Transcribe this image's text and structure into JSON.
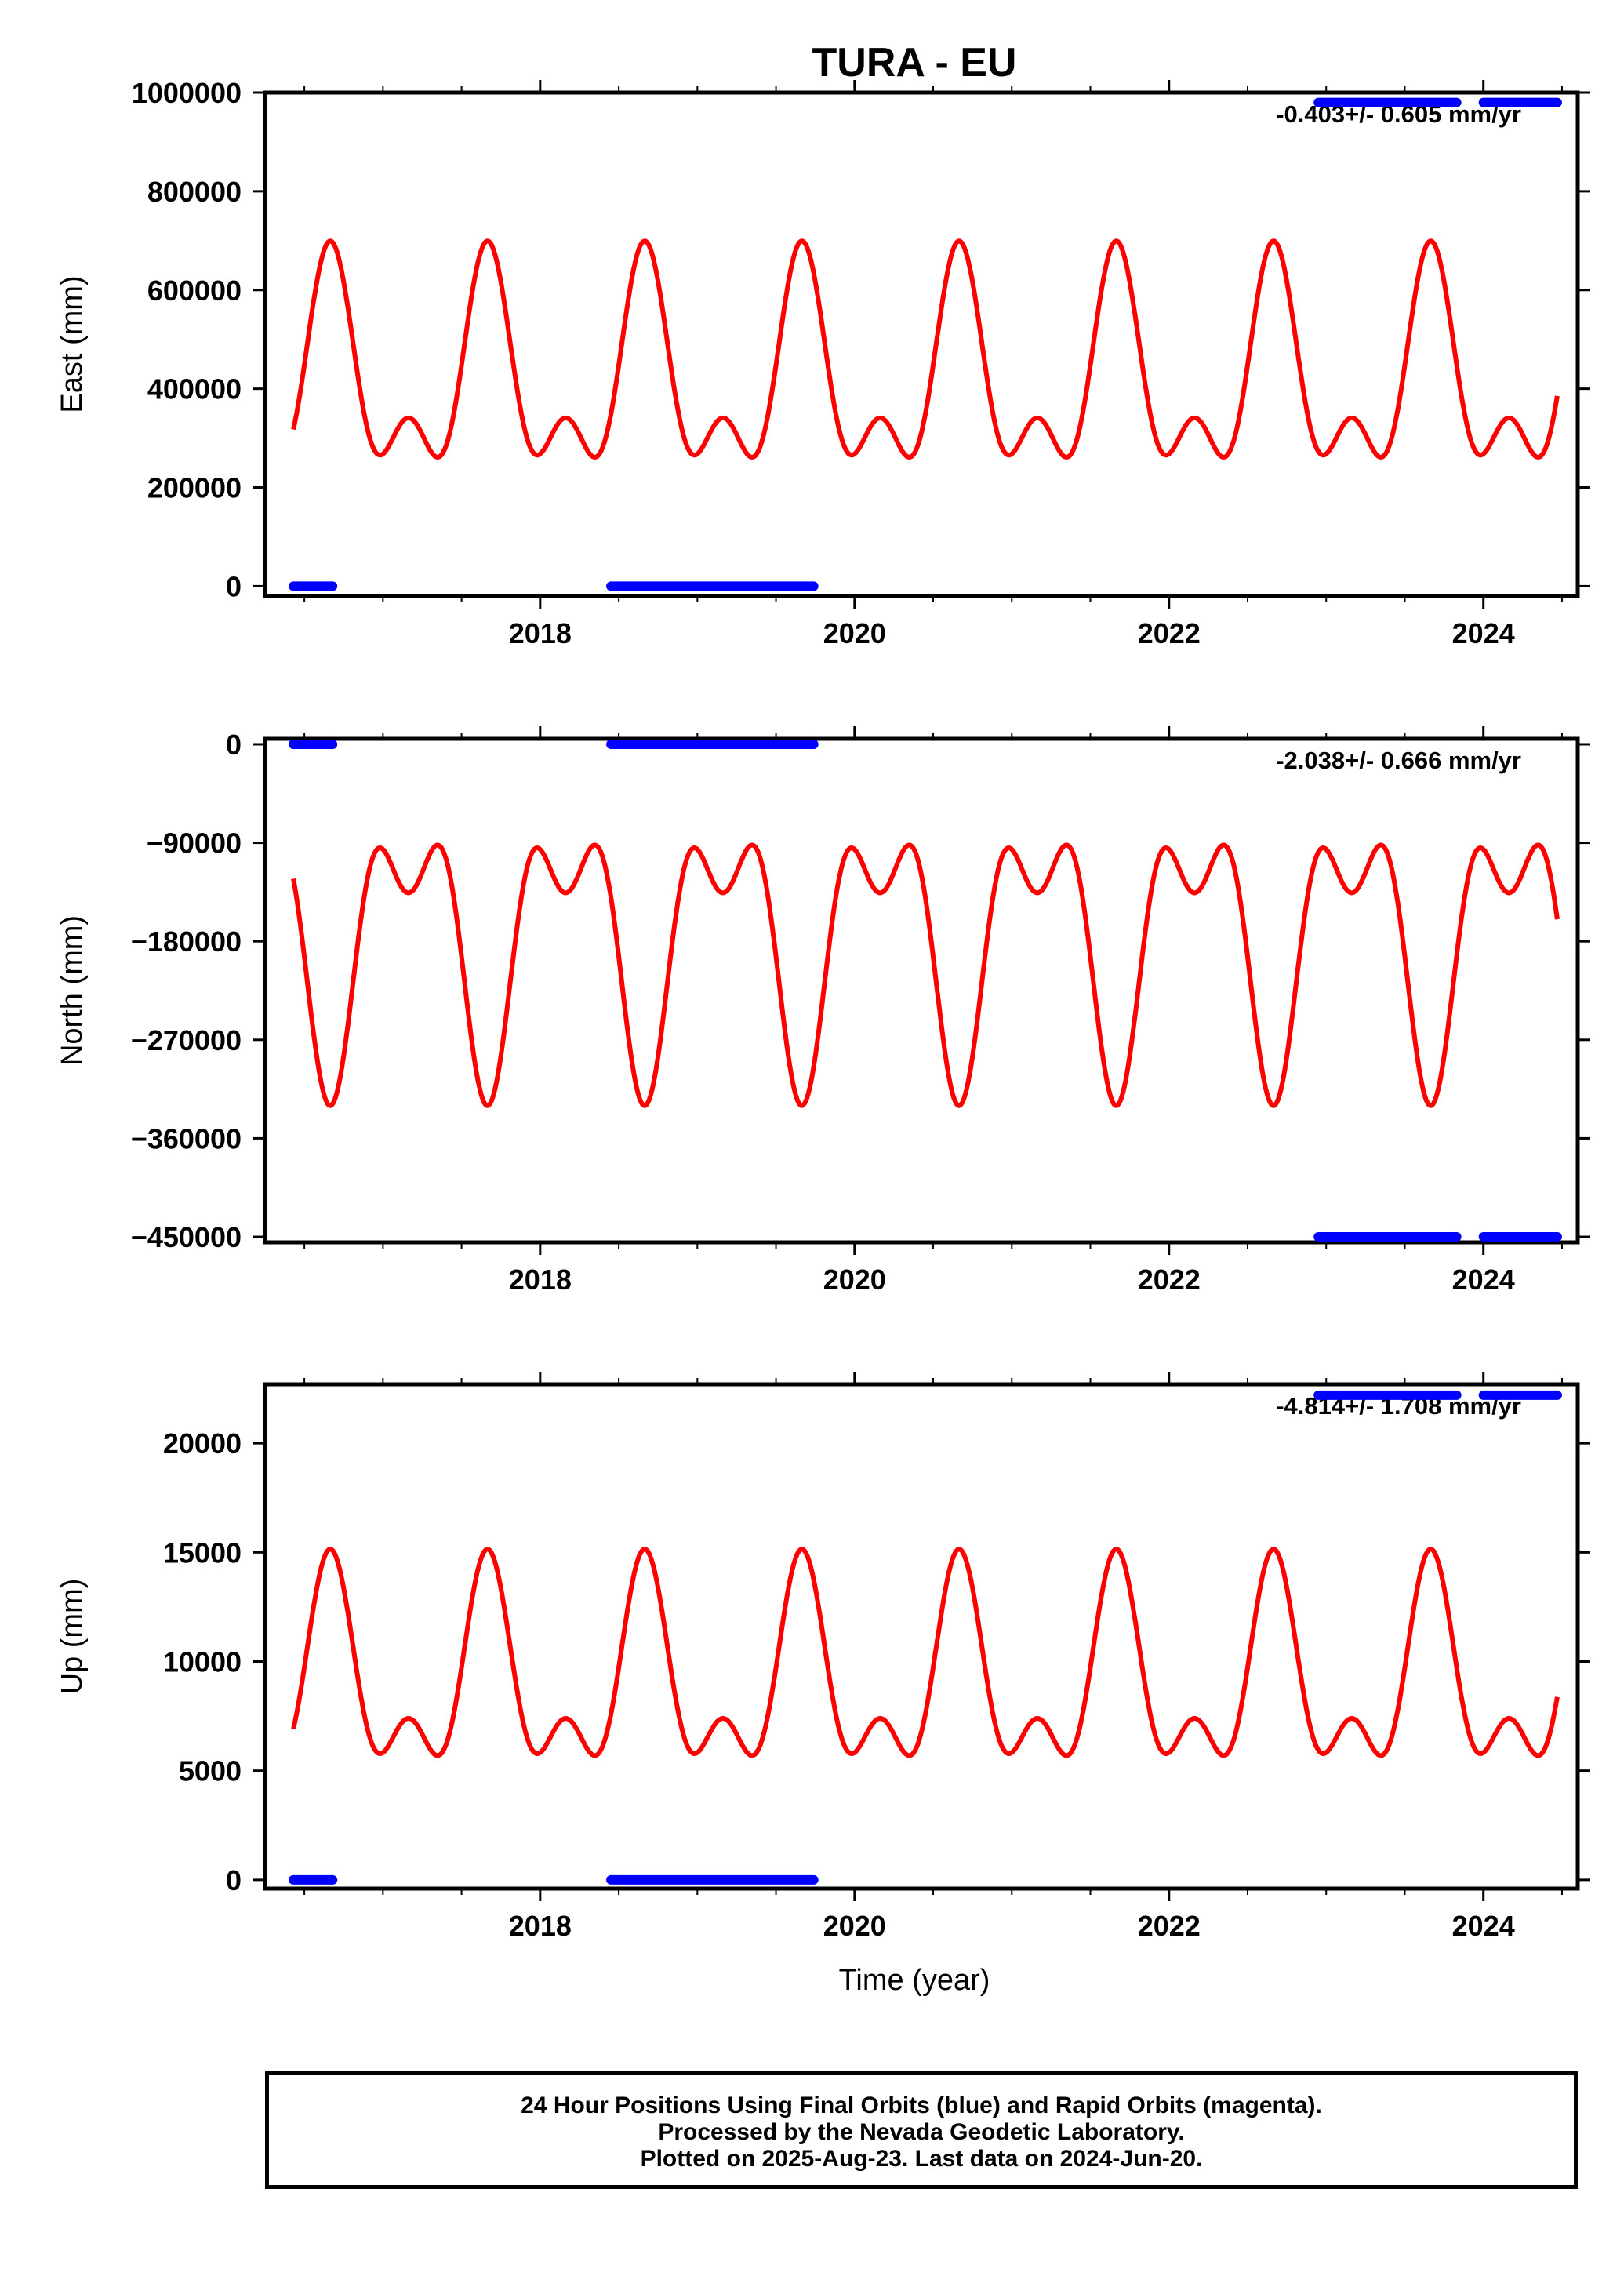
{
  "colors": {
    "model": "#ff0000",
    "final_orbits": "#0000ff",
    "frame": "#000000"
  },
  "chart_data": {
    "title": "TURA - EU",
    "xlabel": "Time (year)",
    "xlim": [
      2016.25,
      2024.6
    ],
    "x_ticks": [
      "2018",
      "2020",
      "2022",
      "2024"
    ],
    "panels": [
      {
        "type": "line",
        "ylabel": "East (mm)",
        "ylim": [
          -20000,
          1000000
        ],
        "y_ticks": [
          "0",
          "200000",
          "400000",
          "600000",
          "800000",
          "1000000"
        ],
        "y_tick_values": [
          0,
          200000,
          400000,
          600000,
          800000,
          1000000
        ],
        "rate": "-0.403+/- 0.605 mm/yr",
        "model": {
          "mean": 410000,
          "c1": -90000,
          "s1": -155000,
          "c2": -52000,
          "s2": 97000,
          "x_start": 2016.43,
          "x_end": 2024.47
        },
        "final_orbit_segments": [
          {
            "x": [
              2016.43,
              2016.68
            ],
            "y": 0
          },
          {
            "x": [
              2018.45,
              2019.74
            ],
            "y": 0
          },
          {
            "x": [
              2022.95,
              2023.83
            ],
            "y": 980000
          },
          {
            "x": [
              2024.0,
              2024.47
            ],
            "y": 980000
          }
        ]
      },
      {
        "type": "line",
        "ylabel": "North (mm)",
        "ylim": [
          -455000,
          5000
        ],
        "y_ticks": [
          "0",
          "−90000",
          "−180000",
          "−270000",
          "−360000",
          "−450000"
        ],
        "y_tick_values": [
          0,
          -90000,
          -180000,
          -270000,
          -360000,
          -450000
        ],
        "rate": "-2.038+/- 0.666 mm/yr",
        "model": {
          "mean": -173000,
          "c1": 49000,
          "s1": 84000,
          "c2": 28000,
          "s2": -53000,
          "x_start": 2016.43,
          "x_end": 2024.47
        },
        "final_orbit_segments": [
          {
            "x": [
              2016.43,
              2016.68
            ],
            "y": 0
          },
          {
            "x": [
              2018.45,
              2019.74
            ],
            "y": 0
          },
          {
            "x": [
              2022.95,
              2023.83
            ],
            "y": -450000
          },
          {
            "x": [
              2024.0,
              2024.47
            ],
            "y": -450000
          }
        ]
      },
      {
        "type": "line",
        "ylabel": "Up (mm)",
        "ylim": [
          -400,
          22700
        ],
        "y_ticks": [
          "0",
          "5000",
          "10000",
          "15000",
          "20000"
        ],
        "y_tick_values": [
          0,
          5000,
          10000,
          15000,
          20000
        ],
        "rate": "-4.814+/- 1.708 mm/yr",
        "model": {
          "mean": 8900,
          "c1": -1950,
          "s1": -3350,
          "c2": -1120,
          "s2": 2090,
          "x_start": 2016.43,
          "x_end": 2024.47
        },
        "final_orbit_segments": [
          {
            "x": [
              2016.43,
              2016.68
            ],
            "y": 0
          },
          {
            "x": [
              2018.45,
              2019.74
            ],
            "y": 0
          },
          {
            "x": [
              2022.95,
              2023.83
            ],
            "y": 22200
          },
          {
            "x": [
              2024.0,
              2024.47
            ],
            "y": 22200
          }
        ]
      }
    ]
  },
  "footer": {
    "line1": "24 Hour Positions Using Final Orbits (blue) and Rapid Orbits (magenta).",
    "line2": "Processed by the Nevada Geodetic Laboratory.",
    "line3": "Plotted on 2025-Aug-23. Last data on 2024-Jun-20."
  }
}
